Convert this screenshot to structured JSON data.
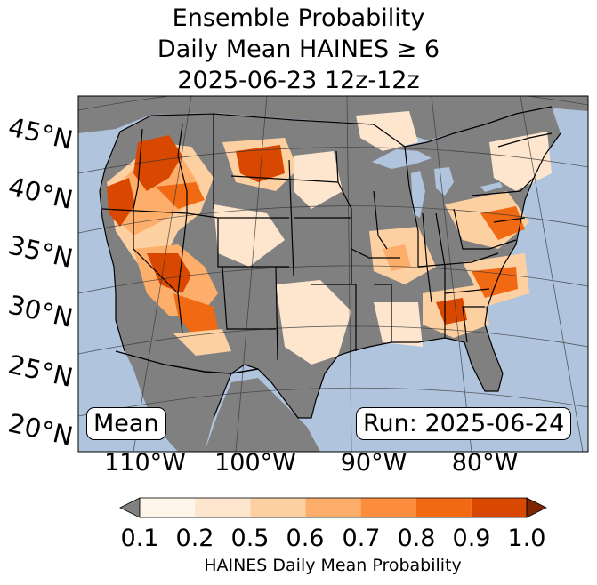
{
  "title": {
    "line1": "Ensemble Probability",
    "line2": "Daily Mean HAINES ≥ 6",
    "line3": "2025-06-23 12z-12z"
  },
  "map": {
    "lat_labels": [
      "45°N",
      "40°N",
      "35°N",
      "30°N",
      "25°N",
      "20°N"
    ],
    "lon_labels": [
      "110°W",
      "100°W",
      "90°W",
      "80°W"
    ],
    "left_box": "Mean",
    "right_box": "Run: 2025-06-24",
    "colors": {
      "ocean": "#b0c4de",
      "land_no_data": "#808080",
      "p01_02": "#fff5eb",
      "p02_05": "#fee6ce",
      "p05_06": "#fdd0a2",
      "p06_07": "#fdae6b",
      "p07_08": "#fd8d3c",
      "p08_09": "#f16913",
      "p09_10": "#d94801"
    }
  },
  "colorbar": {
    "ticks": [
      "0.1",
      "0.2",
      "0.5",
      "0.6",
      "0.7",
      "0.8",
      "0.9",
      "1.0"
    ],
    "label": "HAINES Daily Mean Probability",
    "under_color": "#808080",
    "over_color": "#7f2704",
    "colors": [
      "#fff5eb",
      "#fee6ce",
      "#fdd0a2",
      "#fdae6b",
      "#fd8d3c",
      "#f16913",
      "#d94801"
    ]
  }
}
